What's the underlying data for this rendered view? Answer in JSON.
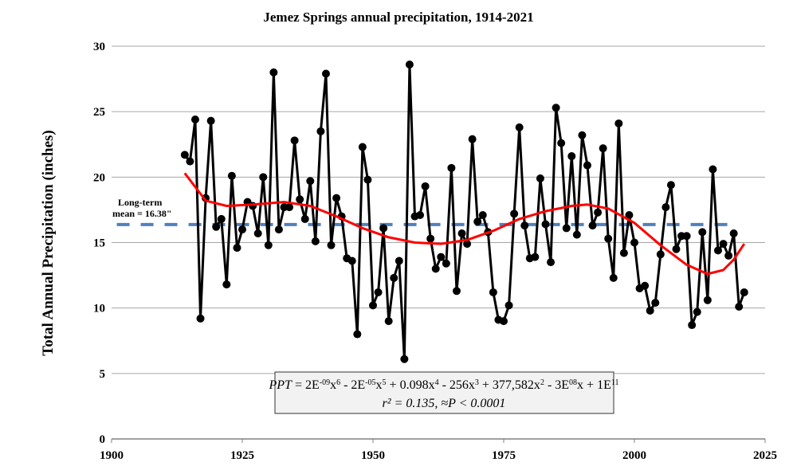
{
  "chart_data": {
    "type": "line",
    "title": "Jemez Springs annual precipitation, 1914-2021",
    "xlabel": "",
    "ylabel": "Total Annual Precipitation (inches)",
    "xlim": [
      1900,
      2025
    ],
    "ylim": [
      0,
      30
    ],
    "xticks": [
      1900,
      1925,
      1950,
      1975,
      2000,
      2025
    ],
    "yticks": [
      0,
      5,
      10,
      15,
      20,
      25,
      30
    ],
    "grid": "horizontal",
    "colors": {
      "series": "#000000",
      "trend": "#ff0000",
      "mean": "#4f81bd",
      "grid": "#a6a6a6",
      "box": "#f2f2f2"
    },
    "x_start": 1914,
    "values": [
      21.7,
      21.2,
      24.4,
      9.2,
      18.4,
      24.3,
      16.2,
      16.8,
      11.8,
      20.1,
      14.6,
      16.0,
      18.1,
      17.8,
      15.7,
      20.0,
      14.8,
      28.0,
      16.0,
      17.7,
      17.7,
      22.8,
      18.3,
      16.8,
      19.7,
      15.1,
      23.5,
      27.9,
      14.8,
      18.4,
      17.0,
      13.8,
      13.6,
      8.0,
      22.3,
      19.8,
      10.2,
      11.2,
      16.1,
      9.0,
      12.3,
      13.6,
      6.1,
      28.6,
      17.0,
      17.1,
      19.3,
      15.3,
      13.0,
      13.9,
      13.4,
      20.7,
      11.3,
      15.7,
      14.9,
      22.9,
      16.6,
      17.1,
      15.8,
      11.2,
      9.1,
      9.0,
      10.2,
      17.2,
      23.8,
      16.3,
      13.8,
      13.9,
      19.9,
      16.4,
      13.5,
      25.3,
      22.6,
      16.1,
      21.6,
      15.6,
      23.2,
      20.9,
      16.3,
      17.3,
      22.2,
      15.3,
      12.3,
      24.1,
      14.2,
      17.1,
      15.0,
      11.5,
      11.7,
      9.8,
      10.4,
      14.1,
      17.7,
      19.4,
      14.5,
      15.5,
      15.5,
      8.7,
      9.7,
      15.8,
      10.6,
      20.6,
      14.4,
      14.9,
      14.0,
      15.7,
      10.1,
      11.2
    ],
    "trend": {
      "x": [
        1914,
        1918,
        1922,
        1927,
        1933,
        1938,
        1943,
        1948,
        1953,
        1958,
        1963,
        1968,
        1973,
        1978,
        1983,
        1988,
        1991,
        1995,
        2000,
        2005,
        2010,
        2014,
        2017,
        2019,
        2021
      ],
      "y": [
        20.3,
        18.2,
        17.8,
        17.9,
        18.1,
        17.8,
        17.0,
        16.1,
        15.4,
        15.0,
        14.9,
        15.2,
        15.9,
        16.8,
        17.4,
        17.8,
        17.9,
        17.6,
        16.5,
        14.8,
        13.3,
        12.6,
        12.9,
        13.7,
        14.9
      ]
    },
    "mean": {
      "value": 16.38,
      "label_line1": "Long-term",
      "label_line2": "mean = 16.38\"",
      "x_range": [
        1901,
        2019
      ]
    },
    "annotation": {
      "line1_var": "PPT",
      "line1_rest": " = 2E",
      "eq_parts": [
        "-09",
        "x",
        "6",
        " - 2E",
        "-05",
        "x",
        "5",
        " + 0.098x",
        "4",
        " - 256x",
        "3",
        " + 377,582x",
        "2",
        " - 3E",
        "08",
        "x + 1E",
        "11"
      ],
      "line2": "r² = 0.135, ≈P < 0.0001"
    }
  }
}
